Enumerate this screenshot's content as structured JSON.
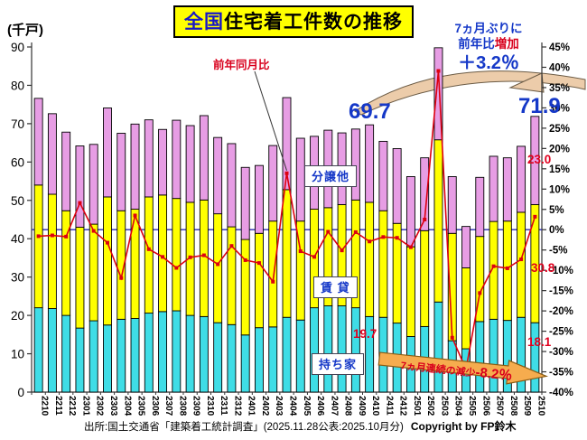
{
  "title": {
    "highlight": "全国",
    "rest": "住宅着工件数の推移"
  },
  "unit_label": "(千戸)",
  "legend_boxes": {
    "other": "分譲他",
    "rental": "賃 貸",
    "owner": "持ち家"
  },
  "line_label": "前年同月比",
  "callout": {
    "line1": "7ヵ月ぶりに",
    "line2_blue": "前年比",
    "line2_red": "増加",
    "line3": "＋3.2％"
  },
  "big_values": {
    "oct2024": "69.7",
    "oct2025": "71.9"
  },
  "red_values": {
    "owner_2410": "19.7",
    "other_2510": "23.0",
    "rental_2510": "30.8",
    "owner_2510": "18.1"
  },
  "decline_arrow": {
    "main": "7ヵ月連続の減少",
    "value": "-8.2％"
  },
  "footer": {
    "source": "出所:国土交通省「建築着工統計調査」(2025.11.28公表:2025.10月分)",
    "copyright": "Copyright by FP鈴木"
  },
  "colors": {
    "owner_bar": "#3fdde6",
    "rental_bar": "#ffff00",
    "other_bar": "#e79de4",
    "bar_border": "#000000",
    "yoy_line": "#dd0010",
    "zero_line": "#2a2ab0",
    "axis": "#333333",
    "swoosh_fill": "#ecccaa",
    "swoosh_stroke": "#6b5b45",
    "decline_fill": "#f6ac4e",
    "decline_stroke": "#8a5d14",
    "accent_blue": "#1538c8",
    "accent_red": "#d8001c",
    "title_bg": "#ffff00"
  },
  "chart_data": {
    "type": "bar",
    "subtype": "stacked-bars-with-yoy-line",
    "categories": [
      "2210",
      "2211",
      "2212",
      "2301",
      "2302",
      "2303",
      "2304",
      "2305",
      "2306",
      "2307",
      "2308",
      "2309",
      "2310",
      "2311",
      "2312",
      "2401",
      "2402",
      "2403",
      "2404",
      "2405",
      "2406",
      "2407",
      "2408",
      "2409",
      "2410",
      "2411",
      "2412",
      "2501",
      "2502",
      "2503",
      "2504",
      "2505",
      "2506",
      "2507",
      "2508",
      "2509",
      "2510"
    ],
    "series": [
      {
        "name": "持ち家",
        "values": [
          22.0,
          21.8,
          20.0,
          16.7,
          18.6,
          17.5,
          19.0,
          19.2,
          20.6,
          21.0,
          21.2,
          20.0,
          19.7,
          18.1,
          17.6,
          14.9,
          16.8,
          17.0,
          19.5,
          18.8,
          22.0,
          22.5,
          22.5,
          22.0,
          19.7,
          19.5,
          18.0,
          14.5,
          17.1,
          23.5,
          13.4,
          11.3,
          18.4,
          19.0,
          18.7,
          19.5,
          18.1
        ]
      },
      {
        "name": "賃貸",
        "values": [
          32.0,
          29.8,
          27.3,
          26.3,
          25.2,
          33.4,
          28.3,
          28.5,
          30.3,
          30.4,
          29.3,
          29.5,
          30.4,
          28.4,
          25.5,
          24.9,
          24.6,
          27.6,
          33.3,
          25.8,
          25.7,
          25.6,
          26.4,
          28.1,
          29.8,
          27.8,
          26.0,
          23.4,
          25.0,
          42.3,
          28.0,
          21.1,
          22.2,
          25.5,
          25.9,
          27.4,
          30.8
        ]
      },
      {
        "name": "分譲他",
        "values": [
          22.6,
          21.0,
          20.5,
          21.2,
          20.8,
          23.2,
          20.2,
          22.2,
          20.1,
          17.1,
          20.4,
          20.0,
          22.0,
          19.9,
          21.7,
          18.8,
          17.7,
          19.7,
          24.0,
          21.6,
          19.0,
          20.2,
          18.7,
          18.5,
          20.2,
          18.1,
          19.5,
          18.3,
          19.0,
          24.0,
          14.8,
          10.8,
          15.4,
          17.0,
          16.5,
          17.2,
          23.0
        ]
      }
    ],
    "line": {
      "name": "前年同月比",
      "unit": "%",
      "values": [
        -1.6,
        -1.4,
        -1.7,
        6.6,
        -0.3,
        -3.2,
        -11.9,
        3.5,
        -4.8,
        -6.7,
        -9.4,
        -6.8,
        -6.3,
        -8.5,
        -4.0,
        -7.5,
        -8.2,
        -12.8,
        13.9,
        -5.3,
        -6.7,
        -0.5,
        -5.1,
        -0.6,
        -2.9,
        -1.8,
        -2.0,
        -4.3,
        2.5,
        39.1,
        -26.6,
        -34.4,
        -15.6,
        -9.0,
        -9.5,
        -7.3,
        3.2
      ]
    },
    "title": "全国住宅着工件数の推移",
    "left_axis": {
      "label": "(千戸)",
      "min": 0,
      "max": 90,
      "step": 10
    },
    "right_axis": {
      "min": -40,
      "max": 45,
      "step": 5,
      "unit": "%"
    },
    "grid": false,
    "zero_reference_line": true,
    "annotations": [
      "69.7 (2410合計)",
      "71.9 (2510合計)",
      "19.7 (2410持ち家)",
      "23.0 (2510分譲他)",
      "30.8 (2510賃貸)",
      "18.1 (2510持ち家)",
      "+3.2% (2510前年比)",
      "-8.2% (7ヵ月連続の減少)"
    ]
  }
}
